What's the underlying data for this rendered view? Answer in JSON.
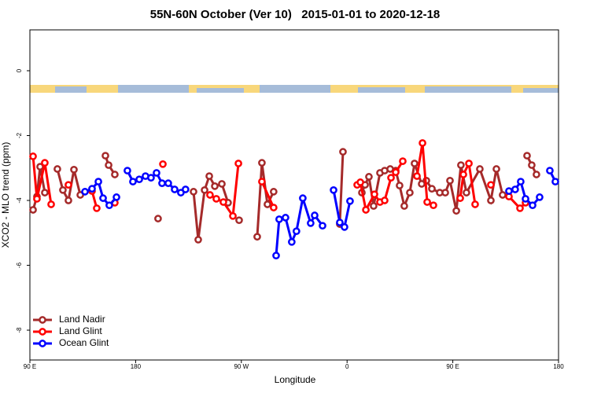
{
  "chart_data": {
    "type": "line",
    "title": "55N-60N October (Ver 10)   2015-01-01 to 2020-12-18",
    "x_label": "Longitude",
    "y_label": "XCO2 - MLO trend (ppm)",
    "xlim": [
      90,
      540
    ],
    "ylim": [
      -8.92,
      1.26
    ],
    "xticks": [
      {
        "value": 90,
        "label": "90 E"
      },
      {
        "value": 180,
        "label": "180"
      },
      {
        "value": 270,
        "label": "90 W"
      },
      {
        "value": 360,
        "label": "0"
      },
      {
        "value": 450,
        "label": "90 E"
      },
      {
        "value": 540,
        "label": "180"
      }
    ],
    "yticks": [
      0,
      -2,
      -4,
      -6,
      -8
    ],
    "legend": "bottom-left",
    "series": [
      {
        "name": "Land Nadir",
        "color": "#a52a2a",
        "x": [
          92.7,
          96.0,
          98.7,
          102.7,
          null,
          113.4,
          118.1,
          122.8,
          127.5,
          132.9,
          null,
          154.3,
          157.0,
          162.3,
          null,
          199.1,
          null,
          229.3,
          233.3,
          238.7,
          242.7,
          247.4,
          253.4,
          258.7,
          null,
          268.1,
          null,
          283.5,
          287.5,
          292.2,
          297.5,
          null,
          353.8,
          356.5,
          null,
          372.6,
          375.3,
          378.6,
          382.6,
          388.0,
          392.0,
          396.7,
          401.4,
          404.7,
          408.7,
          413.4,
          417.4,
          423.5,
          427.5,
          432.2,
          438.9,
          443.6,
          447.6,
          453.0,
          456.9,
          461.6,
          473.0,
          482.4,
          487.1,
          492.4,
          null,
          513.2,
          517.2,
          521.2
        ],
        "values": [
          -4.29,
          -3.88,
          -2.96,
          -3.76,
          null,
          -3.03,
          -3.68,
          -4.0,
          -3.05,
          -3.83,
          null,
          -2.62,
          -2.91,
          -3.2,
          null,
          -4.56,
          null,
          -3.73,
          -5.21,
          -3.68,
          -3.25,
          -3.56,
          -3.49,
          -4.07,
          null,
          -4.61,
          null,
          -5.12,
          -2.84,
          -4.12,
          -3.73,
          null,
          -4.73,
          -2.5,
          null,
          -3.76,
          -3.52,
          -3.27,
          -4.17,
          -3.15,
          -3.08,
          -3.03,
          -3.08,
          -3.54,
          -4.17,
          -3.76,
          -2.86,
          -3.49,
          -3.39,
          -3.64,
          -3.76,
          -3.76,
          -3.39,
          -4.32,
          -2.91,
          -3.76,
          -3.03,
          -4.0,
          -3.03,
          -3.83,
          null,
          -2.62,
          -2.91,
          -3.2
        ]
      },
      {
        "name": "Land Glint",
        "color": "#ff0000",
        "x": [
          92.7,
          96.0,
          102.7,
          108.1,
          null,
          122.8,
          null,
          142.9,
          146.9,
          null,
          162.3,
          null,
          203.2,
          null,
          243.3,
          248.7,
          254.7,
          262.8,
          267.5,
          null,
          287.5,
          297.5,
          null,
          368.6,
          371.3,
          376.0,
          383.3,
          388.0,
          392.0,
          397.4,
          401.4,
          407.4,
          null,
          419.5,
          424.2,
          428.2,
          433.5,
          null,
          456.3,
          459.0,
          463.7,
          469.0,
          null,
          482.4,
          null,
          497.8,
          507.2,
          511.9
        ],
        "values": [
          -2.64,
          -3.95,
          -2.84,
          -4.12,
          null,
          -3.52,
          null,
          -3.71,
          -4.24,
          null,
          -4.07,
          null,
          -2.88,
          null,
          -3.83,
          -3.95,
          -4.05,
          -4.48,
          -2.86,
          null,
          -3.42,
          -4.22,
          null,
          -3.52,
          -3.44,
          -4.29,
          -3.81,
          -4.05,
          -4.0,
          -3.3,
          -3.13,
          -2.79,
          null,
          -3.25,
          -2.23,
          -4.05,
          -4.15,
          null,
          -3.93,
          -3.2,
          -2.86,
          -4.12,
          null,
          -3.52,
          null,
          -3.88,
          -4.24,
          -4.07
        ]
      },
      {
        "name": "Ocean Glint",
        "color": "#0000ff",
        "x": [
          136.9,
          142.9,
          148.3,
          152.3,
          157.6,
          163.7,
          null,
          173.0,
          177.7,
          183.1,
          188.4,
          193.1,
          197.8,
          202.5,
          207.8,
          213.2,
          218.5,
          222.5,
          null,
          299.6,
          302.2,
          307.6,
          312.9,
          316.9,
          322.3,
          329.0,
          332.4,
          339.1,
          null,
          348.5,
          353.8,
          357.8,
          362.5,
          null,
          497.8,
          503.1,
          507.8,
          511.9,
          517.9,
          523.9,
          null,
          532.6,
          537.3
        ],
        "values": [
          -3.73,
          -3.64,
          -3.42,
          -3.93,
          -4.15,
          -3.9,
          null,
          -3.08,
          -3.42,
          -3.35,
          -3.25,
          -3.3,
          -3.15,
          -3.47,
          -3.47,
          -3.66,
          -3.76,
          -3.66,
          null,
          -5.7,
          -4.58,
          -4.53,
          -5.28,
          -4.95,
          -3.93,
          -4.7,
          -4.46,
          -4.78,
          null,
          -3.68,
          -4.68,
          -4.82,
          -4.02,
          null,
          -3.71,
          -3.66,
          -3.42,
          -3.95,
          -4.15,
          -3.9,
          null,
          -3.08,
          -3.42
        ]
      }
    ]
  }
}
